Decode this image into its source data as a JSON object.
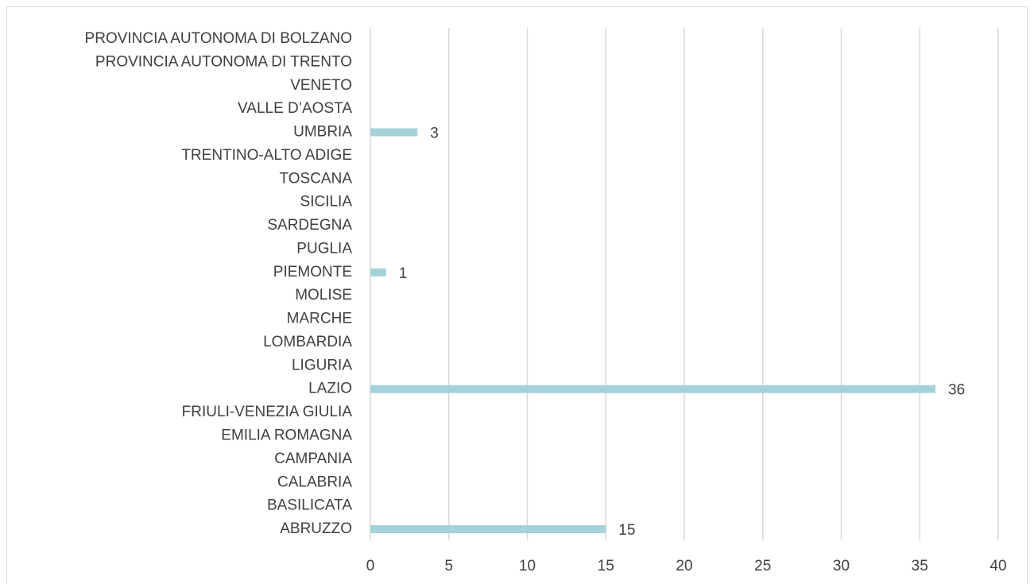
{
  "chart_data": {
    "type": "barh",
    "categories": [
      "ABRUZZO",
      "BASILICATA",
      "CALABRIA",
      "CAMPANIA",
      "EMILIA ROMAGNA",
      "FRIULI-VENEZIA GIULIA",
      "LAZIO",
      "LIGURIA",
      "LOMBARDIA",
      "MARCHE",
      "MOLISE",
      "PIEMONTE",
      "PUGLIA",
      "SARDEGNA",
      "SICILIA",
      "TOSCANA",
      "TRENTINO-ALTO ADIGE",
      "UMBRIA",
      "VALLE D’AOSTA",
      "VENETO",
      "PROVINCIA AUTONOMA DI TRENTO",
      "PROVINCIA AUTONOMA DI BOLZANO"
    ],
    "values": [
      15,
      null,
      null,
      null,
      null,
      null,
      36,
      null,
      null,
      null,
      null,
      1,
      null,
      null,
      null,
      null,
      null,
      3,
      null,
      null,
      null,
      null
    ],
    "color": "#a5d2d9",
    "xlim": [
      0,
      40
    ],
    "xticks": [
      0,
      5,
      10,
      15,
      20,
      25,
      30,
      35,
      40
    ],
    "grid": true
  }
}
